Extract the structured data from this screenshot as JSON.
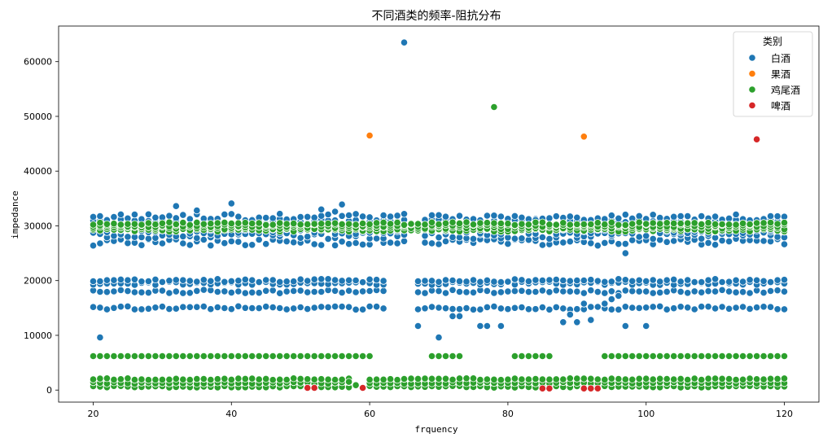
{
  "chart_data": {
    "type": "scatter",
    "title": "不同酒类的频率-阻抗分布",
    "xlabel": "frquency",
    "ylabel": "impedance",
    "xlim": [
      15,
      125
    ],
    "ylim": [
      -2200,
      66500
    ],
    "xticks": [
      20,
      40,
      60,
      80,
      100,
      120
    ],
    "yticks": [
      0,
      10000,
      20000,
      30000,
      40000,
      50000,
      60000
    ],
    "grid": false,
    "legend": {
      "title": "类别",
      "position": "top-right"
    },
    "series": [
      {
        "name": "白酒",
        "color": "#1f77b4",
        "bands": [
          {
            "x_from": 20,
            "x_to": 120,
            "step": 1,
            "y": [
              27000,
              28200,
              29000,
              29800,
              30700,
              31600
            ],
            "jitter": 600,
            "gaps": [
              [
                66,
                67
              ]
            ]
          },
          {
            "x_from": 20,
            "x_to": 120,
            "step": 1,
            "y": [
              15000,
              18000,
              19500,
              20000
            ],
            "jitter": 300,
            "gaps": [
              [
                63,
                66
              ]
            ]
          }
        ],
        "points": [
          {
            "x": 65,
            "y": 63500
          },
          {
            "x": 21,
            "y": 9600
          },
          {
            "x": 70,
            "y": 9600
          },
          {
            "x": 67,
            "y": 11700
          },
          {
            "x": 72,
            "y": 13500
          },
          {
            "x": 73,
            "y": 13500
          },
          {
            "x": 76,
            "y": 11700
          },
          {
            "x": 77,
            "y": 11700
          },
          {
            "x": 79,
            "y": 11700
          },
          {
            "x": 88,
            "y": 12400
          },
          {
            "x": 89,
            "y": 13800
          },
          {
            "x": 90,
            "y": 12400
          },
          {
            "x": 91,
            "y": 15800
          },
          {
            "x": 92,
            "y": 12800
          },
          {
            "x": 94,
            "y": 15800
          },
          {
            "x": 95,
            "y": 16600
          },
          {
            "x": 96,
            "y": 17200
          },
          {
            "x": 97,
            "y": 11700
          },
          {
            "x": 97,
            "y": 25000
          },
          {
            "x": 100,
            "y": 11700
          },
          {
            "x": 32,
            "y": 33600
          },
          {
            "x": 35,
            "y": 32800
          },
          {
            "x": 40,
            "y": 34100
          },
          {
            "x": 53,
            "y": 33000
          },
          {
            "x": 55,
            "y": 32600
          },
          {
            "x": 56,
            "y": 33900
          }
        ]
      },
      {
        "name": "果酒",
        "color": "#ff7f0e",
        "points": [
          {
            "x": 60,
            "y": 46500
          },
          {
            "x": 91,
            "y": 46300
          }
        ]
      },
      {
        "name": "鸡尾酒",
        "color": "#2ca02c",
        "bands": [
          {
            "x_from": 20,
            "x_to": 120,
            "step": 1,
            "y": [
              29200,
              29600,
              30000,
              30400
            ],
            "jitter": 250,
            "gaps": []
          },
          {
            "x_from": 20,
            "x_to": 120,
            "step": 1,
            "y": [
              600,
              1300,
              2000
            ],
            "jitter": 150,
            "gaps": [
              [
                58,
                59
              ]
            ]
          }
        ],
        "row6000": [
          {
            "x_from": 20,
            "x_to": 60
          },
          {
            "x_from": 69,
            "x_to": 73
          },
          {
            "x_from": 81,
            "x_to": 86
          },
          {
            "x_from": 94,
            "x_to": 120
          }
        ],
        "row6000_y": 6200,
        "points": [
          {
            "x": 78,
            "y": 51700
          },
          {
            "x": 57,
            "y": 1500
          },
          {
            "x": 58,
            "y": 900
          }
        ]
      },
      {
        "name": "啤酒",
        "color": "#d62728",
        "points": [
          {
            "x": 116,
            "y": 45800
          },
          {
            "x": 59,
            "y": 400
          },
          {
            "x": 51,
            "y": 400
          },
          {
            "x": 52,
            "y": 400
          },
          {
            "x": 85,
            "y": 300
          },
          {
            "x": 86,
            "y": 300
          },
          {
            "x": 91,
            "y": 300
          },
          {
            "x": 92,
            "y": 300
          },
          {
            "x": 93,
            "y": 300
          }
        ]
      }
    ]
  }
}
